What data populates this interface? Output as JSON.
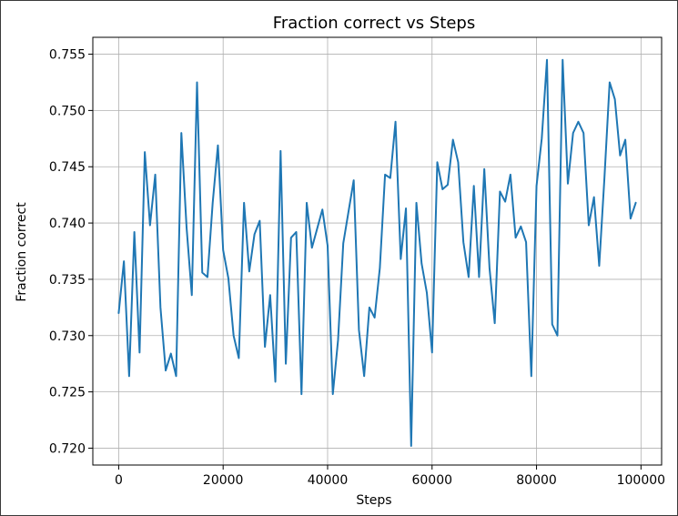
{
  "chart_data": {
    "type": "line",
    "title": "Fraction correct vs Steps",
    "xlabel": "Steps",
    "ylabel": "Fraction correct",
    "xlim": [
      -4950,
      103950
    ],
    "ylim": [
      0.7185,
      0.7565
    ],
    "xticks": [
      0,
      20000,
      40000,
      60000,
      80000,
      100000
    ],
    "yticks": [
      0.72,
      0.725,
      0.73,
      0.735,
      0.74,
      0.745,
      0.75,
      0.755
    ],
    "ytick_labels": [
      "0.720",
      "0.725",
      "0.730",
      "0.735",
      "0.740",
      "0.745",
      "0.750",
      "0.755"
    ],
    "grid": true,
    "line_color": "#1f77b4",
    "series": [
      {
        "x": [
          0,
          1000,
          2000,
          3000,
          4000,
          5000,
          6000,
          7000,
          8000,
          9000,
          10000,
          11000,
          12000,
          13000,
          14000,
          15000,
          16000,
          17000,
          18000,
          19000,
          20000,
          21000,
          22000,
          23000,
          24000,
          25000,
          26000,
          27000,
          28000,
          29000,
          30000,
          31000,
          32000,
          33000,
          34000,
          35000,
          36000,
          37000,
          38000,
          39000,
          40000,
          41000,
          42000,
          43000,
          44000,
          45000,
          46000,
          47000,
          48000,
          49000,
          50000,
          51000,
          52000,
          53000,
          54000,
          55000,
          56000,
          57000,
          58000,
          59000,
          60000,
          61000,
          62000,
          63000,
          64000,
          65000,
          66000,
          67000,
          68000,
          69000,
          70000,
          71000,
          72000,
          73000,
          74000,
          75000,
          76000,
          77000,
          78000,
          79000,
          80000,
          81000,
          82000,
          83000,
          84000,
          85000,
          86000,
          87000,
          88000,
          89000,
          90000,
          91000,
          92000,
          93000,
          94000,
          95000,
          96000,
          97000,
          98000,
          99000
        ],
        "values": [
          0.732,
          0.7366,
          0.7264,
          0.7392,
          0.7285,
          0.7463,
          0.7398,
          0.7443,
          0.7325,
          0.7269,
          0.7284,
          0.7264,
          0.748,
          0.7396,
          0.7336,
          0.7525,
          0.7356,
          0.7352,
          0.7418,
          0.7469,
          0.7376,
          0.7351,
          0.73,
          0.728,
          0.7418,
          0.7357,
          0.739,
          0.7402,
          0.729,
          0.7336,
          0.7259,
          0.7464,
          0.7275,
          0.7387,
          0.7392,
          0.7248,
          0.7418,
          0.7378,
          0.7395,
          0.7412,
          0.738,
          0.7248,
          0.7296,
          0.7382,
          0.741,
          0.7438,
          0.7305,
          0.7264,
          0.7325,
          0.7316,
          0.736,
          0.7443,
          0.744,
          0.749,
          0.7368,
          0.7413,
          0.7202,
          0.7418,
          0.7364,
          0.7338,
          0.7285,
          0.7454,
          0.743,
          0.7434,
          0.7474,
          0.7454,
          0.7383,
          0.7352,
          0.7433,
          0.7352,
          0.7448,
          0.736,
          0.7311,
          0.7428,
          0.7419,
          0.7443,
          0.7387,
          0.7397,
          0.7383,
          0.7264,
          0.7433,
          0.7475,
          0.7545,
          0.731,
          0.73,
          0.7545,
          0.7435,
          0.748,
          0.749,
          0.748,
          0.7398,
          0.7423,
          0.7362,
          0.744,
          0.7525,
          0.751,
          0.746,
          0.7474,
          0.7404,
          0.7418
        ]
      }
    ]
  }
}
